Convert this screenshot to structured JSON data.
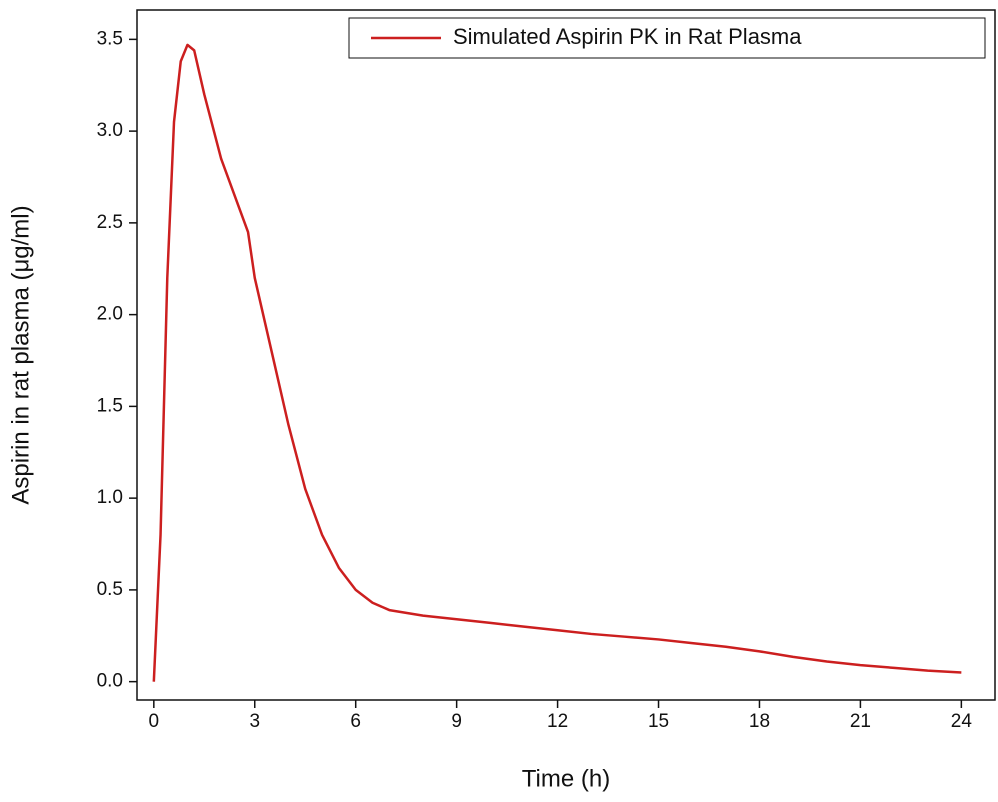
{
  "chart_data": {
    "type": "line",
    "xlabel": "Time (h)",
    "ylabel": "Aspirin in rat plasma (μg/ml)",
    "x": [
      0,
      0.2,
      0.4,
      0.6,
      0.8,
      1.0,
      1.2,
      1.5,
      2.0,
      2.5,
      2.8,
      3.0,
      3.5,
      4.0,
      4.5,
      5.0,
      5.5,
      6.0,
      6.5,
      7.0,
      8.0,
      9.0,
      10.0,
      11.0,
      12.0,
      13.0,
      14.0,
      15.0,
      16.0,
      17.0,
      18.0,
      19.0,
      20.0,
      21.0,
      22.0,
      23.0,
      24.0
    ],
    "series": [
      {
        "name": "Simulated Aspirin PK in Rat Plasma",
        "color": "#cc1f1f",
        "values": [
          0,
          0.8,
          2.2,
          3.05,
          3.38,
          3.47,
          3.44,
          3.2,
          2.85,
          2.6,
          2.45,
          2.2,
          1.8,
          1.4,
          1.05,
          0.8,
          0.62,
          0.5,
          0.43,
          0.39,
          0.36,
          0.34,
          0.32,
          0.3,
          0.28,
          0.26,
          0.245,
          0.23,
          0.21,
          0.19,
          0.165,
          0.135,
          0.11,
          0.09,
          0.075,
          0.06,
          0.05
        ]
      }
    ],
    "xlim": [
      -0.5,
      25
    ],
    "ylim": [
      -0.1,
      3.66
    ],
    "xticks": [
      0,
      3,
      6,
      9,
      12,
      15,
      18,
      21,
      24
    ],
    "yticks": [
      {
        "value": 0,
        "label": "0.0"
      },
      0.5,
      {
        "value": 1,
        "label": "1.0"
      },
      1.5,
      {
        "value": 2,
        "label": "2.0"
      },
      2.5,
      {
        "value": 3,
        "label": "3.0"
      },
      3.5
    ],
    "legend": "upper right"
  }
}
